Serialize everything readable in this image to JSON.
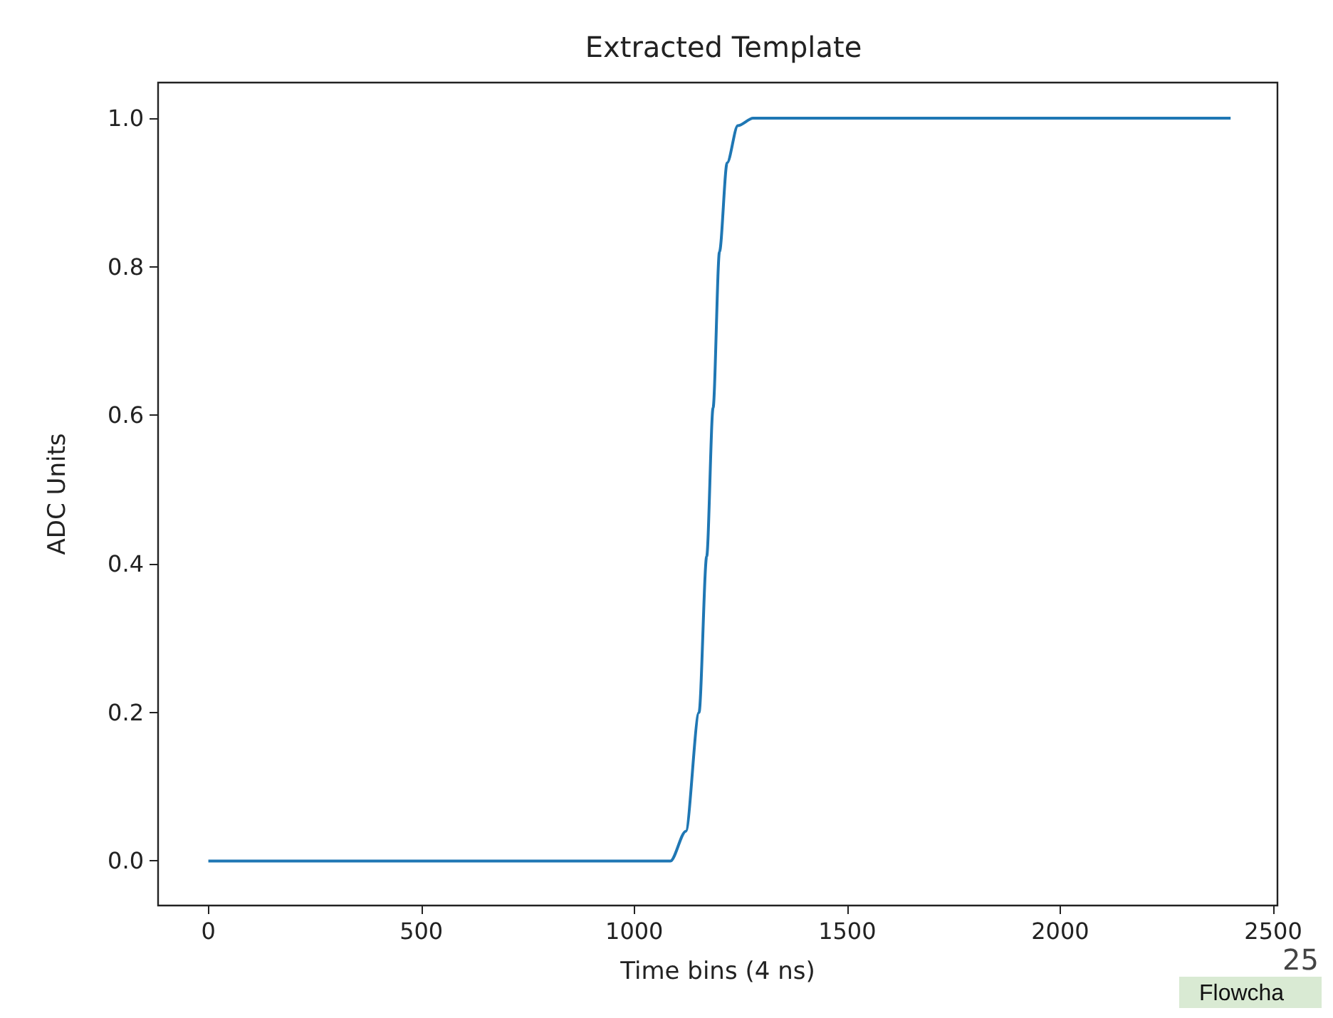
{
  "chart_data": {
    "type": "line",
    "title": "Extracted Template",
    "xlabel": "Time bins (4 ns)",
    "ylabel": "ADC Units",
    "x": [
      0,
      1000,
      1085,
      1121,
      1152,
      1170,
      1185,
      1200,
      1218,
      1243,
      1279,
      1500,
      2000,
      2400
    ],
    "series": [
      {
        "color": "#1f77b4",
        "values": [
          0,
          0,
          0,
          0.04,
          0.2,
          0.41,
          0.61,
          0.82,
          0.94,
          0.99,
          1,
          1,
          1,
          1
        ]
      }
    ],
    "xlim": [
      -118,
      2510
    ],
    "ylim": [
      -0.06,
      1.048
    ],
    "xticks": [
      0,
      500,
      1000,
      1500,
      2000,
      2500
    ],
    "yticks": [
      {
        "value": 0,
        "label": "0.0"
      },
      {
        "value": 0.2,
        "label": "0.2"
      },
      {
        "value": 0.4,
        "label": "0.4"
      },
      {
        "value": 0.6,
        "label": "0.6"
      },
      {
        "value": 0.8,
        "label": "0.8"
      },
      {
        "value": 1,
        "label": "1.0"
      }
    ],
    "grid": false,
    "marker": "none",
    "line_style": "solid",
    "annotations": [
      "25",
      "Flowcha"
    ]
  }
}
